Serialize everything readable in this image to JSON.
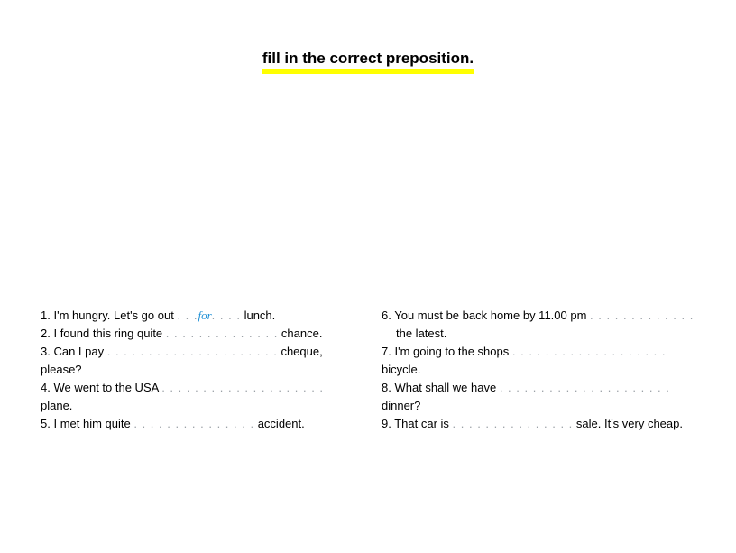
{
  "title": "fill in the correct preposition.",
  "highlight_color": "#ffff00",
  "answer_color": "#1e90d6",
  "dots_color": "#9aa0a6",
  "text_color": "#000000",
  "background_color": "#ffffff",
  "font_size_title": 17,
  "font_size_body": 13,
  "left": [
    {
      "n": "1.",
      "a": "I'm hungry. Let's go out ",
      "dots_a": ". . .",
      "ans": "for",
      "dots_b": ". . . .",
      "b": " lunch."
    },
    {
      "n": "2.",
      "a": "I found this ring quite ",
      "dots_a": ". . . . . . . . . . . . . .",
      "b": " chance."
    },
    {
      "n": "3.",
      "a": "Can I pay  ",
      "dots_a": ". . . . . . . . . . . . . . . . . . . . .",
      "b": " cheque, please?"
    },
    {
      "n": "4.",
      "a": "We went to the USA ",
      "dots_a": ". . . . . . . . . . . . . . . . . . . .",
      "b": " plane."
    },
    {
      "n": "5.",
      "a": "I met him quite ",
      "dots_a": ". . . . . . . . . . . . . . .",
      "b": " accident."
    }
  ],
  "right": [
    {
      "n": "6.",
      "a": "You must be back home by 11.00 pm ",
      "dots_a": ". . . . . . . . . . . . .",
      "cont": "the latest."
    },
    {
      "n": "7.",
      "a": "I'm going to the shops ",
      "dots_a": ". . . . . . . . . . . . . . . . . . .",
      "b": " bicycle."
    },
    {
      "n": "8.",
      "a": "What shall we have ",
      "dots_a": ". . . . . . . . . . . . . . . . . . . . .",
      "b": " dinner?"
    },
    {
      "n": "9.",
      "a": "That car is ",
      "dots_a": ". . . . . . . . . . . . . . .",
      "b": " sale. It's very cheap."
    }
  ]
}
